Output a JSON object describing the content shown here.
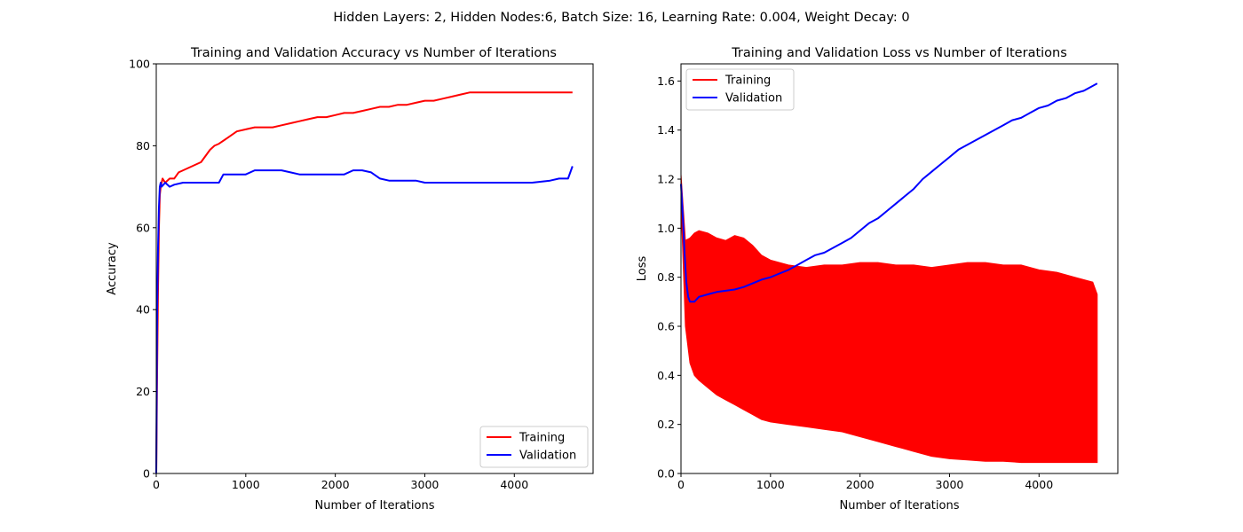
{
  "figure": {
    "suptitle": "Hidden Layers: 2, Hidden Nodes:6, Batch Size: 16, Learning Rate: 0.004, Weight Decay: 0"
  },
  "chart_data": [
    {
      "type": "line",
      "title": "Training and Validation Accuracy vs Number of Iterations",
      "xlabel": "Number of Iterations",
      "ylabel": "Accuracy",
      "xlim": [
        0,
        4880
      ],
      "ylim": [
        0,
        100
      ],
      "xticks": [
        0,
        1000,
        2000,
        3000,
        4000
      ],
      "yticks": [
        0,
        20,
        40,
        60,
        80,
        100
      ],
      "xtick_labels": [
        "0",
        "1000",
        "2000",
        "3000",
        "4000"
      ],
      "ytick_labels": [
        "0",
        "20",
        "40",
        "60",
        "80",
        "100"
      ],
      "grid": false,
      "legend": {
        "position": "lower-right"
      },
      "series": [
        {
          "name": "Training",
          "color": "#ff0000",
          "x": [
            0,
            10,
            20,
            30,
            40,
            50,
            70,
            100,
            150,
            200,
            250,
            300,
            400,
            500,
            550,
            600,
            650,
            700,
            800,
            900,
            1000,
            1100,
            1200,
            1300,
            1400,
            1500,
            1600,
            1700,
            1800,
            1900,
            2000,
            2100,
            2200,
            2300,
            2400,
            2500,
            2600,
            2700,
            2800,
            2900,
            3000,
            3100,
            3200,
            3300,
            3400,
            3500,
            3600,
            3700,
            3800,
            3900,
            4000,
            4100,
            4200,
            4300,
            4400,
            4500,
            4600,
            4650
          ],
          "y": [
            0,
            25,
            45,
            60,
            68,
            70,
            72,
            71,
            72,
            72,
            73.5,
            74,
            75,
            76,
            77.5,
            79,
            80,
            80.5,
            82,
            83.5,
            84,
            84.5,
            84.5,
            84.5,
            85,
            85.5,
            86,
            86.5,
            87,
            87,
            87.5,
            88,
            88,
            88.5,
            89,
            89.5,
            89.5,
            90,
            90,
            90.5,
            91,
            91,
            91.5,
            92,
            92.5,
            93,
            93,
            93,
            93,
            93,
            93,
            93,
            93,
            93,
            93,
            93,
            93,
            93
          ]
        },
        {
          "name": "Validation",
          "color": "#0000ff",
          "x": [
            0,
            10,
            20,
            30,
            40,
            50,
            60,
            80,
            100,
            150,
            200,
            300,
            400,
            500,
            600,
            700,
            750,
            800,
            900,
            1000,
            1100,
            1200,
            1300,
            1400,
            1500,
            1600,
            1700,
            1800,
            1900,
            2000,
            2100,
            2200,
            2300,
            2400,
            2500,
            2600,
            2700,
            2800,
            2900,
            3000,
            3200,
            3400,
            3600,
            3800,
            4000,
            4200,
            4400,
            4500,
            4600,
            4650
          ],
          "y": [
            0,
            40,
            55,
            65,
            70,
            71,
            70,
            70.5,
            71,
            70,
            70.5,
            71,
            71,
            71,
            71,
            71,
            73,
            73,
            73,
            73,
            74,
            74,
            74,
            74,
            73.5,
            73,
            73,
            73,
            73,
            73,
            73,
            74,
            74,
            73.5,
            72,
            71.5,
            71.5,
            71.5,
            71.5,
            71,
            71,
            71,
            71,
            71,
            71,
            71,
            71.5,
            72,
            72,
            75
          ]
        }
      ]
    },
    {
      "type": "line",
      "title": "Training and Validation Loss vs Number of Iterations",
      "xlabel": "Number of Iterations",
      "ylabel": "Loss",
      "xlim": [
        0,
        4880
      ],
      "ylim": [
        0,
        1.67
      ],
      "xticks": [
        0,
        1000,
        2000,
        3000,
        4000
      ],
      "yticks": [
        0,
        0.2,
        0.4,
        0.6,
        0.8,
        1.0,
        1.2,
        1.4,
        1.6
      ],
      "xtick_labels": [
        "0",
        "1000",
        "2000",
        "3000",
        "4000"
      ],
      "ytick_labels": [
        "0.0",
        "0.2",
        "0.4",
        "0.6",
        "0.8",
        "1.0",
        "1.2",
        "1.4",
        "1.6"
      ],
      "grid": false,
      "legend": {
        "position": "upper-left"
      },
      "series": [
        {
          "name": "Training",
          "color": "#ff0000",
          "style": "oscillating-band",
          "x": [
            0,
            50,
            100,
            150,
            200,
            300,
            400,
            500,
            600,
            700,
            800,
            900,
            1000,
            1200,
            1400,
            1600,
            1800,
            2000,
            2200,
            2400,
            2600,
            2800,
            3000,
            3200,
            3400,
            3600,
            3800,
            4000,
            4200,
            4400,
            4600,
            4650
          ],
          "upper": [
            1.22,
            0.95,
            0.96,
            0.98,
            0.99,
            0.98,
            0.96,
            0.95,
            0.97,
            0.96,
            0.93,
            0.89,
            0.87,
            0.85,
            0.84,
            0.85,
            0.85,
            0.86,
            0.86,
            0.85,
            0.85,
            0.84,
            0.85,
            0.86,
            0.86,
            0.85,
            0.85,
            0.83,
            0.82,
            0.8,
            0.78,
            0.73
          ],
          "lower": [
            1.1,
            0.6,
            0.45,
            0.4,
            0.38,
            0.35,
            0.32,
            0.3,
            0.28,
            0.26,
            0.24,
            0.22,
            0.21,
            0.2,
            0.19,
            0.18,
            0.17,
            0.15,
            0.13,
            0.11,
            0.09,
            0.07,
            0.06,
            0.055,
            0.05,
            0.05,
            0.045,
            0.045,
            0.045,
            0.045,
            0.045,
            0.045
          ]
        },
        {
          "name": "Validation",
          "color": "#0000ff",
          "x": [
            0,
            20,
            40,
            60,
            80,
            100,
            150,
            200,
            300,
            400,
            500,
            600,
            700,
            800,
            900,
            1000,
            1100,
            1200,
            1300,
            1400,
            1500,
            1600,
            1700,
            1800,
            1900,
            2000,
            2100,
            2200,
            2300,
            2400,
            2500,
            2600,
            2700,
            2800,
            2900,
            3000,
            3100,
            3200,
            3300,
            3400,
            3500,
            3600,
            3700,
            3800,
            3900,
            4000,
            4100,
            4200,
            4300,
            4400,
            4500,
            4600,
            4650
          ],
          "y": [
            1.18,
            1.05,
            0.9,
            0.78,
            0.72,
            0.7,
            0.7,
            0.72,
            0.73,
            0.74,
            0.745,
            0.75,
            0.76,
            0.775,
            0.79,
            0.8,
            0.815,
            0.83,
            0.85,
            0.87,
            0.89,
            0.9,
            0.92,
            0.94,
            0.96,
            0.99,
            1.02,
            1.04,
            1.07,
            1.1,
            1.13,
            1.16,
            1.2,
            1.23,
            1.26,
            1.29,
            1.32,
            1.34,
            1.36,
            1.38,
            1.4,
            1.42,
            1.44,
            1.45,
            1.47,
            1.49,
            1.5,
            1.52,
            1.53,
            1.55,
            1.56,
            1.58,
            1.59
          ]
        }
      ]
    }
  ]
}
